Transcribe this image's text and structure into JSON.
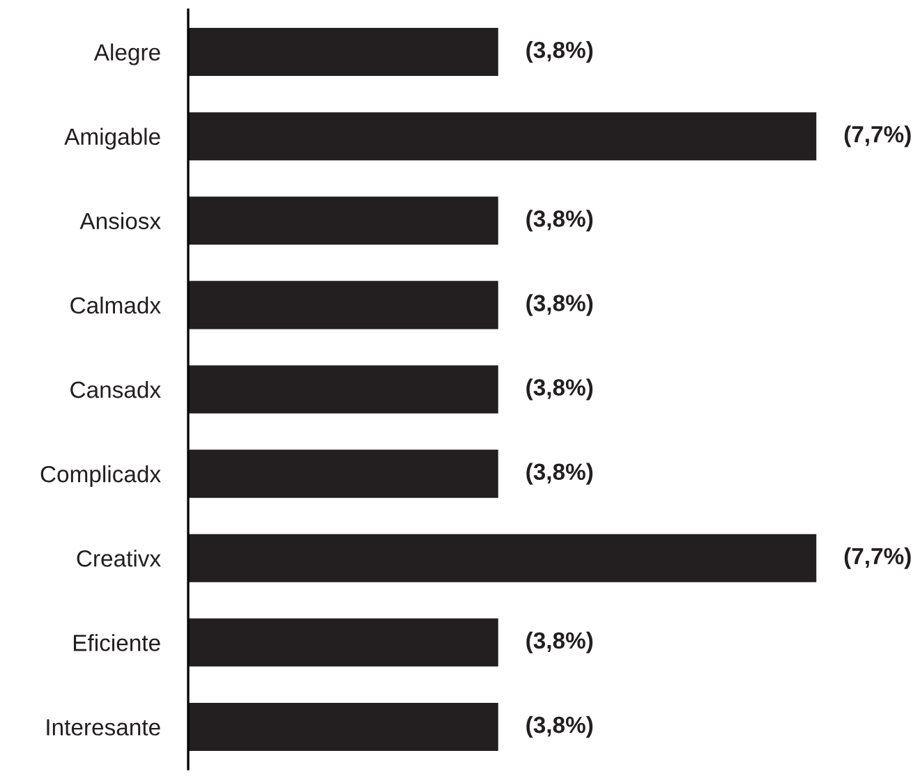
{
  "chart_data": {
    "type": "bar",
    "orientation": "horizontal",
    "categories": [
      "Alegre",
      "Amigable",
      "Ansiosx",
      "Calmadx",
      "Cansadx",
      "Complicadx",
      "Creativx",
      "Eficiente",
      "Interesante"
    ],
    "values": [
      3.8,
      7.7,
      3.8,
      3.8,
      3.8,
      3.8,
      7.7,
      3.8,
      3.8
    ],
    "value_labels": [
      "(3,8%)",
      "(7,7%)",
      "(3,8%)",
      "(3,8%)",
      "(3,8%)",
      "(3,8%)",
      "(7,7%)",
      "(3,8%)",
      "(3,8%)"
    ],
    "color": "#231f20",
    "tick_labels": "y",
    "grid": false,
    "legend": false
  }
}
